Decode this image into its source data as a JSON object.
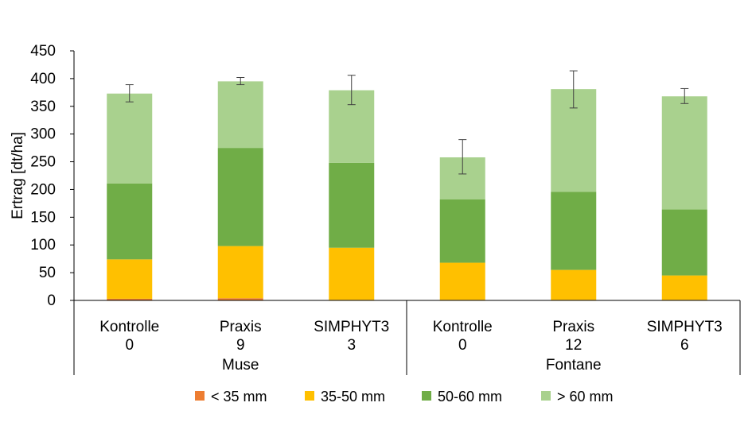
{
  "chart_data": {
    "type": "bar",
    "stacked": true,
    "title": "",
    "xlabel": "",
    "ylabel": "Ertrag [dt/ha]",
    "ylim": [
      0,
      450
    ],
    "yticks": [
      0,
      50,
      100,
      150,
      200,
      250,
      300,
      350,
      400,
      450
    ],
    "grid": false,
    "categories": [
      {
        "name": "Kontrolle",
        "sub": "0",
        "group": "Muse"
      },
      {
        "name": "Praxis",
        "sub": "9",
        "group": "Muse"
      },
      {
        "name": "SIMPHYT3",
        "sub": "3",
        "group": "Muse"
      },
      {
        "name": "Kontrolle",
        "sub": "0",
        "group": "Fontane"
      },
      {
        "name": "Praxis",
        "sub": "12",
        "group": "Fontane"
      },
      {
        "name": "SIMPHYT3",
        "sub": "6",
        "group": "Fontane"
      }
    ],
    "groups": [
      "Muse",
      "Fontane"
    ],
    "series": [
      {
        "name": "< 35 mm",
        "color": "#ED7D31",
        "values": [
          3,
          4,
          1,
          1,
          1,
          1
        ]
      },
      {
        "name": "35-50 mm",
        "color": "#FFC000",
        "values": [
          71,
          94,
          94,
          67,
          54,
          44
        ]
      },
      {
        "name": "50-60 mm",
        "color": "#70AD47",
        "values": [
          137,
          177,
          153,
          114,
          141,
          119
        ]
      },
      {
        "name": "> 60 mm",
        "color": "#A9D18E",
        "values": [
          162,
          120,
          131,
          76,
          185,
          204
        ]
      }
    ],
    "error_bars": [
      {
        "low": 358,
        "high": 389
      },
      {
        "low": 389,
        "high": 402
      },
      {
        "low": 353,
        "high": 406
      },
      {
        "low": 228,
        "high": 290
      },
      {
        "low": 347,
        "high": 414
      },
      {
        "low": 355,
        "high": 382
      }
    ],
    "legend_position": "bottom"
  }
}
